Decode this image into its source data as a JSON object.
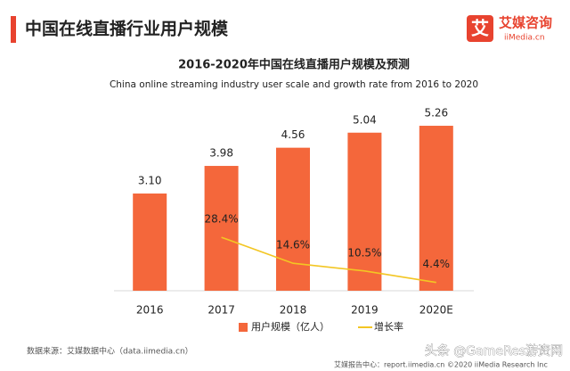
{
  "header": {
    "title": "中国在线直播行业用户规模",
    "logo_icon": "艾",
    "logo_cn": "艾媒咨询",
    "logo_en": "iiMedia.cn"
  },
  "chart_data": {
    "type": "bar",
    "title": "2016-2020年中国在线直播用户规模及预测",
    "subtitle": "China online streaming industry user scale and growth rate from 2016 to 2020",
    "categories": [
      "2016",
      "2017",
      "2018",
      "2019",
      "2020E"
    ],
    "series": [
      {
        "name": "用户规模（亿人）",
        "type": "bar",
        "color": "#f4673b",
        "values": [
          3.1,
          3.98,
          4.56,
          5.04,
          5.26
        ],
        "value_labels": [
          "3.10",
          "3.98",
          "4.56",
          "5.04",
          "5.26"
        ]
      },
      {
        "name": "增长率",
        "type": "line",
        "axis": "y2",
        "color": "#f3c623",
        "values": [
          null,
          28.4,
          14.6,
          10.5,
          4.4
        ],
        "value_labels": [
          null,
          "28.4%",
          "14.6%",
          "10.5%",
          "4.4%"
        ]
      }
    ],
    "ylim": [
      0,
      6
    ],
    "y2lim": [
      0,
      100
    ],
    "legend": "bottom"
  },
  "footer": {
    "source": "数据来源：艾媒数据中心（data.iimedia.cn）",
    "report": "艾媒报告中心：report.iimedia.cn   ©2020  iiMedia Research  Inc",
    "watermark": "头条 @GameRes游资网"
  }
}
